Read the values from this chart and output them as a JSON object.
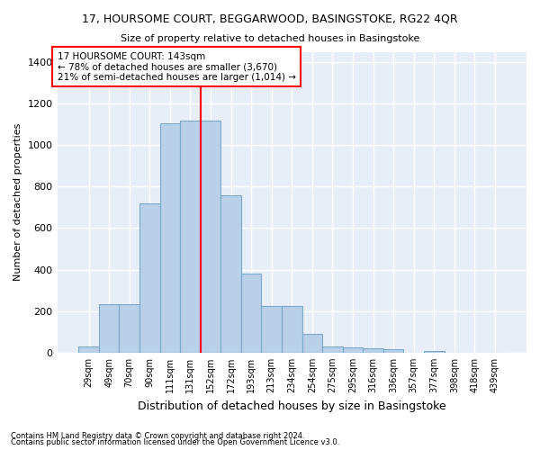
{
  "title": "17, HOURSOME COURT, BEGGARWOOD, BASINGSTOKE, RG22 4QR",
  "subtitle": "Size of property relative to detached houses in Basingstoke",
  "xlabel": "Distribution of detached houses by size in Basingstoke",
  "ylabel": "Number of detached properties",
  "footnote1": "Contains HM Land Registry data © Crown copyright and database right 2024.",
  "footnote2": "Contains public sector information licensed under the Open Government Licence v3.0.",
  "bar_labels": [
    "29sqm",
    "49sqm",
    "70sqm",
    "90sqm",
    "111sqm",
    "131sqm",
    "152sqm",
    "172sqm",
    "193sqm",
    "213sqm",
    "234sqm",
    "254sqm",
    "275sqm",
    "295sqm",
    "316sqm",
    "336sqm",
    "357sqm",
    "377sqm",
    "398sqm",
    "418sqm",
    "439sqm"
  ],
  "bar_values": [
    30,
    235,
    235,
    720,
    1105,
    1120,
    1120,
    760,
    380,
    225,
    225,
    90,
    30,
    25,
    20,
    15,
    0,
    10,
    0,
    0,
    0
  ],
  "bar_color": "#b8d0e8",
  "bar_edgecolor": "#7aaac8",
  "background_color": "#e8eef8",
  "grid_color": "#ffffff",
  "vline_x": 5.5,
  "vline_color": "red",
  "annotation_text": "17 HOURSOME COURT: 143sqm\n← 78% of detached houses are smaller (3,670)\n21% of semi-detached houses are larger (1,014) →",
  "annotation_box_color": "red",
  "ylim": [
    0,
    1450
  ],
  "yticks": [
    0,
    200,
    400,
    600,
    800,
    1000,
    1200,
    1400
  ]
}
